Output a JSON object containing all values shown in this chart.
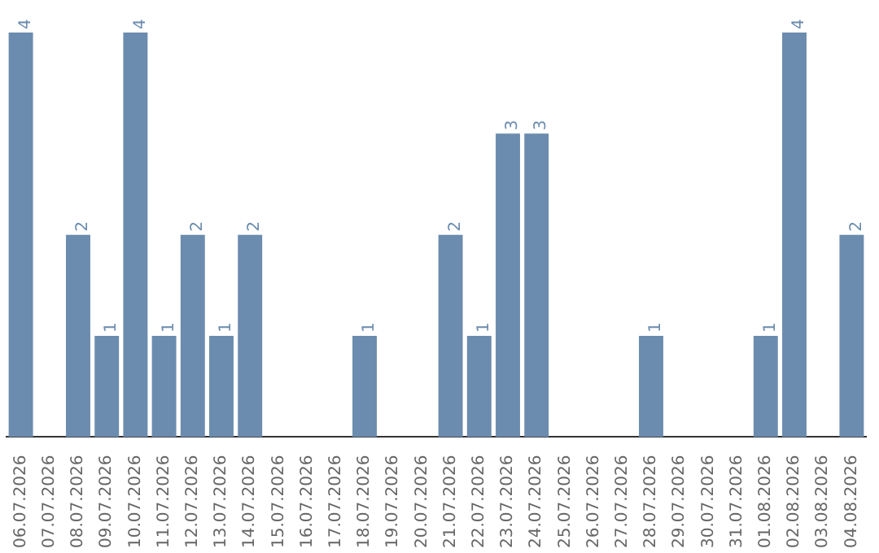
{
  "chart_data": {
    "type": "bar",
    "categories": [
      "06.07.2026",
      "07.07.2026",
      "08.07.2026",
      "09.07.2026",
      "10.07.2026",
      "11.07.2026",
      "12.07.2026",
      "13.07.2026",
      "14.07.2026",
      "15.07.2026",
      "16.07.2026",
      "17.07.2026",
      "18.07.2026",
      "19.07.2026",
      "20.07.2026",
      "21.07.2026",
      "22.07.2026",
      "23.07.2026",
      "24.07.2026",
      "25.07.2026",
      "26.07.2026",
      "27.07.2026",
      "28.07.2026",
      "29.07.2026",
      "30.07.2026",
      "31.07.2026",
      "01.08.2026",
      "02.08.2026",
      "03.08.2026",
      "04.08.2026"
    ],
    "values": [
      4,
      0,
      2,
      1,
      4,
      1,
      2,
      1,
      2,
      0,
      0,
      0,
      1,
      0,
      0,
      2,
      1,
      3,
      3,
      0,
      0,
      0,
      1,
      0,
      0,
      0,
      1,
      4,
      0,
      2
    ],
    "value_labels": [
      "4",
      null,
      "2",
      "1",
      "4",
      "1",
      "2",
      "1",
      "2",
      null,
      null,
      null,
      "1",
      null,
      null,
      "2",
      "1",
      "3",
      "3",
      null,
      null,
      null,
      "1",
      null,
      null,
      null,
      "1",
      "4",
      null,
      "2"
    ],
    "color": "#6b8cae",
    "ylim": [
      0,
      4
    ],
    "tick_labels": "x",
    "grid": false,
    "legend": false
  }
}
